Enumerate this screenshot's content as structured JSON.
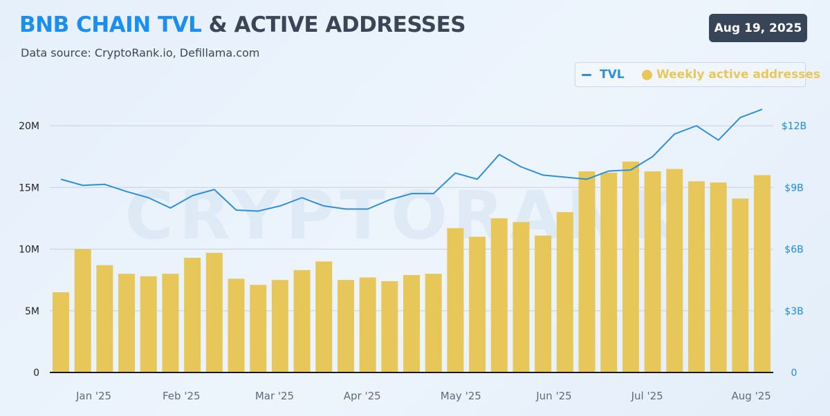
{
  "header": {
    "title_part1": "BNB CHAIN TVL",
    "title_part2": "& ACTIVE ADDRESSES",
    "subtitle": "Data source: CryptoRank.io, Defillama.com",
    "date": "Aug 19, 2025"
  },
  "watermark": "CRYPTORANK",
  "colors": {
    "title_blue": "#1a8ff0",
    "title_dark": "#3a4556",
    "bar": "#e8c75a",
    "line": "#2d8fdc",
    "right_axis": "#1a8ae0",
    "left_axis": "#222222",
    "x_axis_text": "#5b6a80"
  },
  "chart_data": {
    "type": "bar",
    "legend": [
      {
        "label": "TVL",
        "marker": "line"
      },
      {
        "label": "Weekly active addresses",
        "marker": "dot"
      }
    ],
    "legend_position": "top-right",
    "grid": true,
    "x_tick_labels": [
      "Jan '25",
      "Feb '25",
      "Mar '25",
      "Apr '25",
      "May '25",
      "Jun '25",
      "Jul '25",
      "Aug '25"
    ],
    "x_tick_bar_index": [
      1.5,
      5.5,
      9.75,
      13.75,
      18.25,
      22.5,
      26.75,
      31.5
    ],
    "left_axis": {
      "ticks": [
        "0",
        "5M",
        "10M",
        "15M",
        "20M"
      ],
      "tick_values": [
        0,
        5,
        10,
        15,
        20
      ],
      "range": [
        0,
        22.5
      ],
      "unit": "M"
    },
    "right_axis": {
      "ticks": [
        "0",
        "$3B",
        "$6B",
        "$9B",
        "$12B"
      ],
      "tick_values": [
        0,
        3,
        6,
        9,
        12
      ],
      "range": [
        0,
        13.5
      ],
      "unit": "B USD"
    },
    "series": [
      {
        "name": "Weekly active addresses",
        "type": "bar",
        "axis": "left",
        "values": [
          6.5,
          10.0,
          8.7,
          8.0,
          7.8,
          8.0,
          9.3,
          9.7,
          7.6,
          7.1,
          7.5,
          8.3,
          9.0,
          7.5,
          7.7,
          7.4,
          7.9,
          8.0,
          11.7,
          11.0,
          12.5,
          12.2,
          11.1,
          13.0,
          16.3,
          16.2,
          17.1,
          16.3,
          16.5,
          15.5,
          15.4,
          14.1,
          16.0
        ]
      },
      {
        "name": "TVL",
        "type": "line",
        "axis": "right",
        "values": [
          9.4,
          9.1,
          9.15,
          8.8,
          8.5,
          8.0,
          8.6,
          8.9,
          7.9,
          7.85,
          8.1,
          8.5,
          8.1,
          7.95,
          7.95,
          8.4,
          8.7,
          8.7,
          9.7,
          9.4,
          10.6,
          10.0,
          9.6,
          9.5,
          9.4,
          9.8,
          9.85,
          10.5,
          11.6,
          12.0,
          11.3,
          12.4,
          12.8
        ]
      }
    ]
  }
}
